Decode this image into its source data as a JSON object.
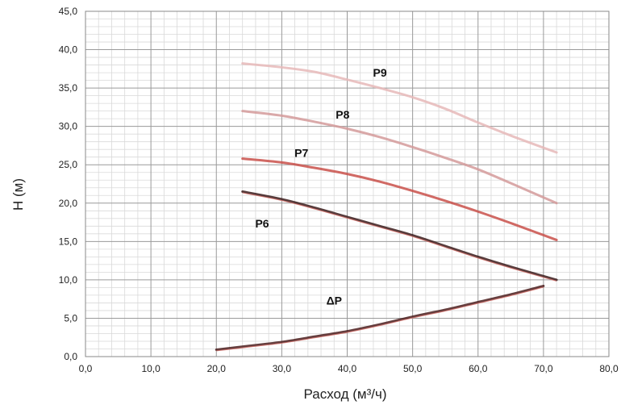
{
  "chart_data": {
    "type": "line",
    "title": "",
    "xlabel": "Расход (м³/ч)",
    "ylabel": "Н (м)",
    "xlim": [
      0,
      80
    ],
    "ylim": [
      0,
      45
    ],
    "x_major_step": 10,
    "y_major_step": 5,
    "minor_gridlines": true,
    "grid": true,
    "legend": "none (inline curve labels)",
    "x_tick_labels": [
      "0,0",
      "10,0",
      "20,0",
      "30,0",
      "40,0",
      "50,0",
      "60,0",
      "70,0",
      "80,0"
    ],
    "y_tick_labels": [
      "0,0",
      "5,0",
      "10,0",
      "15,0",
      "20,0",
      "25,0",
      "30,0",
      "35,0",
      "40,0",
      "45,0"
    ],
    "series": [
      {
        "name": "P9",
        "color": "#e6b8b8",
        "points": [
          [
            24,
            38.2
          ],
          [
            30,
            37.7
          ],
          [
            35,
            37.1
          ],
          [
            40,
            36.1
          ],
          [
            45,
            35.0
          ],
          [
            50,
            33.8
          ],
          [
            55,
            32.3
          ],
          [
            60,
            30.5
          ],
          [
            65,
            28.8
          ],
          [
            72,
            26.6
          ]
        ]
      },
      {
        "name": "P8",
        "color": "#d49a9a",
        "points": [
          [
            24,
            32.0
          ],
          [
            30,
            31.4
          ],
          [
            35,
            30.6
          ],
          [
            40,
            29.7
          ],
          [
            45,
            28.6
          ],
          [
            50,
            27.3
          ],
          [
            55,
            25.9
          ],
          [
            60,
            24.4
          ],
          [
            65,
            22.6
          ],
          [
            72,
            20.0
          ]
        ]
      },
      {
        "name": "P7",
        "color": "#c9504a",
        "points": [
          [
            24,
            25.8
          ],
          [
            30,
            25.3
          ],
          [
            35,
            24.6
          ],
          [
            40,
            23.8
          ],
          [
            45,
            22.8
          ],
          [
            50,
            21.6
          ],
          [
            55,
            20.3
          ],
          [
            60,
            18.9
          ],
          [
            65,
            17.4
          ],
          [
            72,
            15.2
          ]
        ]
      },
      {
        "name": "P6",
        "color": "#3a1a1a",
        "points": [
          [
            24,
            21.5
          ],
          [
            30,
            20.5
          ],
          [
            35,
            19.4
          ],
          [
            40,
            18.2
          ],
          [
            45,
            17.0
          ],
          [
            50,
            15.8
          ],
          [
            55,
            14.4
          ],
          [
            60,
            13.0
          ],
          [
            65,
            11.7
          ],
          [
            72,
            10.0
          ]
        ]
      },
      {
        "name": "ΔP",
        "color": "#4a1c1c",
        "points": [
          [
            20,
            0.9
          ],
          [
            25,
            1.4
          ],
          [
            30,
            1.9
          ],
          [
            35,
            2.6
          ],
          [
            40,
            3.3
          ],
          [
            45,
            4.2
          ],
          [
            50,
            5.2
          ],
          [
            55,
            6.1
          ],
          [
            60,
            7.1
          ],
          [
            65,
            8.1
          ],
          [
            70,
            9.2
          ]
        ]
      }
    ],
    "annotations": [
      {
        "text": "P9",
        "x": 45.0,
        "y": 36.5
      },
      {
        "text": "P8",
        "x": 39.3,
        "y": 31.0
      },
      {
        "text": "P7",
        "x": 33.0,
        "y": 26.0
      },
      {
        "text": "P6",
        "x": 27.0,
        "y": 16.8
      },
      {
        "text": "ΔP",
        "x": 38.0,
        "y": 6.8
      }
    ]
  }
}
